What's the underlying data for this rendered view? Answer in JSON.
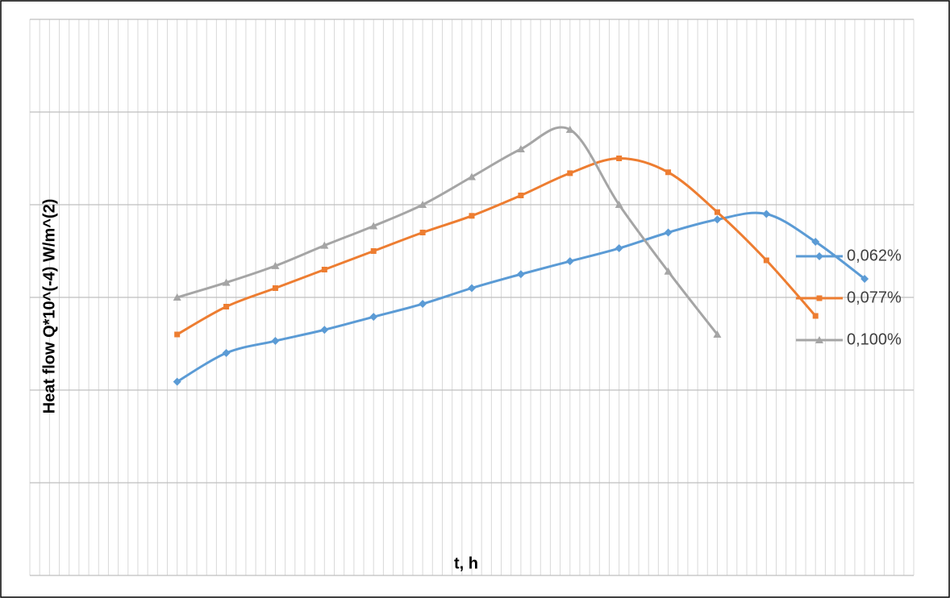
{
  "chart_data": {
    "type": "line",
    "y_label": "Heat flow Q*10^(-4) W/m^(2)",
    "x_label": "t,  h",
    "x": [
      15,
      20,
      25,
      30,
      35,
      40,
      45,
      50,
      55,
      60,
      65,
      70,
      75,
      80,
      85
    ],
    "xlim": [
      0,
      90
    ],
    "ylim": [
      0,
      6
    ],
    "grid": true,
    "ygrid": [
      0,
      1,
      2,
      3,
      4,
      5,
      6
    ],
    "xgrid": [
      0,
      1,
      2,
      3,
      4,
      5,
      6,
      7,
      8,
      9,
      10,
      11,
      12,
      13,
      14,
      15,
      16,
      17,
      18,
      19,
      20,
      21,
      22,
      23,
      24,
      25,
      26,
      27,
      28,
      29,
      30,
      31,
      32,
      33,
      34,
      35,
      36,
      37,
      38,
      39,
      40,
      41,
      42,
      43,
      44,
      45,
      46,
      47,
      48,
      49,
      50,
      51,
      52,
      53,
      54,
      55,
      56,
      57,
      58,
      59,
      60,
      61,
      62,
      63,
      64,
      65,
      66,
      67,
      68,
      69,
      70,
      71,
      72,
      73,
      74,
      75,
      76,
      77,
      78,
      79,
      80,
      81,
      82,
      83,
      84,
      85,
      86,
      87,
      88,
      89,
      90
    ],
    "smooth": true,
    "legend": "right",
    "series": [
      {
        "name": "0,062%",
        "color": "#5b9bd5",
        "marker": "diamond",
        "values": [
          2.09,
          2.4,
          2.53,
          2.65,
          2.79,
          2.93,
          3.1,
          3.25,
          3.39,
          3.53,
          3.7,
          3.84,
          3.9,
          3.6,
          3.2
        ]
      },
      {
        "name": "0,077%",
        "color": "#ed7d31",
        "marker": "square",
        "values": [
          2.6,
          2.9,
          3.1,
          3.3,
          3.5,
          3.7,
          3.88,
          4.1,
          4.34,
          4.5,
          4.35,
          3.92,
          3.4,
          2.8,
          null
        ]
      },
      {
        "name": "0,100%",
        "color": "#a5a5a5",
        "marker": "triangle",
        "values": [
          3.0,
          3.16,
          3.34,
          3.56,
          3.77,
          4.0,
          4.3,
          4.6,
          4.81,
          4.0,
          3.28,
          2.6,
          null,
          null,
          null
        ]
      }
    ]
  }
}
